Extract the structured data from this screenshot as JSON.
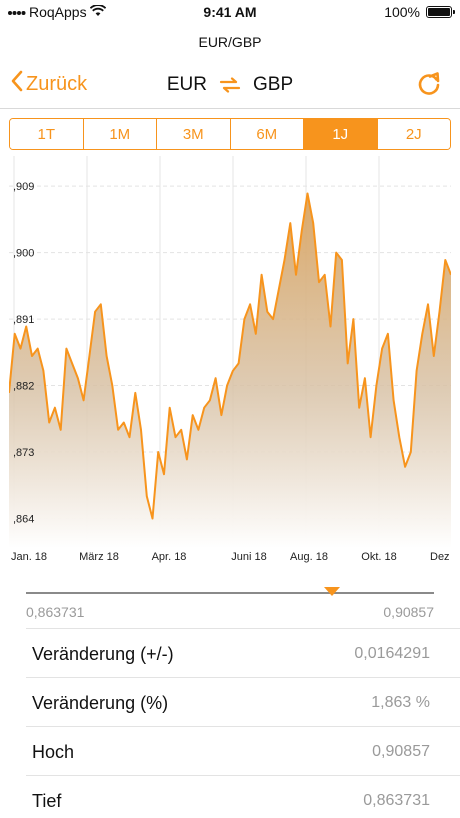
{
  "status_bar": {
    "carrier": "RoqApps",
    "time": "9:41 AM",
    "battery": "100%"
  },
  "nav": {
    "subtitle": "EUR/GBP",
    "back_label": "Zurück",
    "from_currency": "EUR",
    "to_currency": "GBP"
  },
  "segments": [
    {
      "label": "1T",
      "active": false
    },
    {
      "label": "1M",
      "active": false
    },
    {
      "label": "3M",
      "active": false
    },
    {
      "label": "6M",
      "active": false
    },
    {
      "label": "1J",
      "active": true
    },
    {
      "label": "2J",
      "active": false
    }
  ],
  "chart_data": {
    "type": "area",
    "series_color": "#f7941d",
    "y_ticks": [
      ",909",
      ",900",
      ",891",
      ",882",
      ",873",
      ",864"
    ],
    "x_ticks": [
      "Jan. 18",
      "März 18",
      "Apr. 18",
      "Juni 18",
      "Aug. 18",
      "Okt. 18",
      "Dez"
    ],
    "ylim": [
      0.86,
      0.912
    ],
    "grid": true,
    "values": [
      0.881,
      0.889,
      0.887,
      0.89,
      0.886,
      0.887,
      0.884,
      0.877,
      0.879,
      0.876,
      0.887,
      0.885,
      0.883,
      0.88,
      0.886,
      0.892,
      0.893,
      0.886,
      0.882,
      0.876,
      0.877,
      0.875,
      0.881,
      0.876,
      0.867,
      0.864,
      0.873,
      0.87,
      0.879,
      0.875,
      0.876,
      0.872,
      0.878,
      0.876,
      0.879,
      0.88,
      0.883,
      0.878,
      0.882,
      0.884,
      0.885,
      0.891,
      0.893,
      0.889,
      0.897,
      0.892,
      0.891,
      0.895,
      0.899,
      0.904,
      0.897,
      0.903,
      0.908,
      0.904,
      0.896,
      0.897,
      0.89,
      0.9,
      0.899,
      0.885,
      0.891,
      0.879,
      0.883,
      0.875,
      0.882,
      0.887,
      0.889,
      0.88,
      0.875,
      0.871,
      0.873,
      0.884,
      0.889,
      0.893,
      0.886,
      0.892,
      0.899,
      0.897
    ],
    "range_min": "0,863731",
    "range_max": "0,90857"
  },
  "slider": {
    "position": 0.75
  },
  "stats": [
    {
      "label": "Veränderung (+/-)",
      "value": "0,0164291"
    },
    {
      "label": "Veränderung (%)",
      "value": "1,863 %"
    },
    {
      "label": "Hoch",
      "value": "0,90857"
    },
    {
      "label": "Tief",
      "value": "0,863731"
    }
  ],
  "colors": {
    "accent": "#f7941d",
    "muted": "#9a9a9a"
  },
  "icons": {
    "back": "chevron-left-icon",
    "swap": "swap-arrows-icon",
    "refresh": "refresh-icon",
    "wifi": "wifi-icon",
    "battery": "battery-icon"
  }
}
